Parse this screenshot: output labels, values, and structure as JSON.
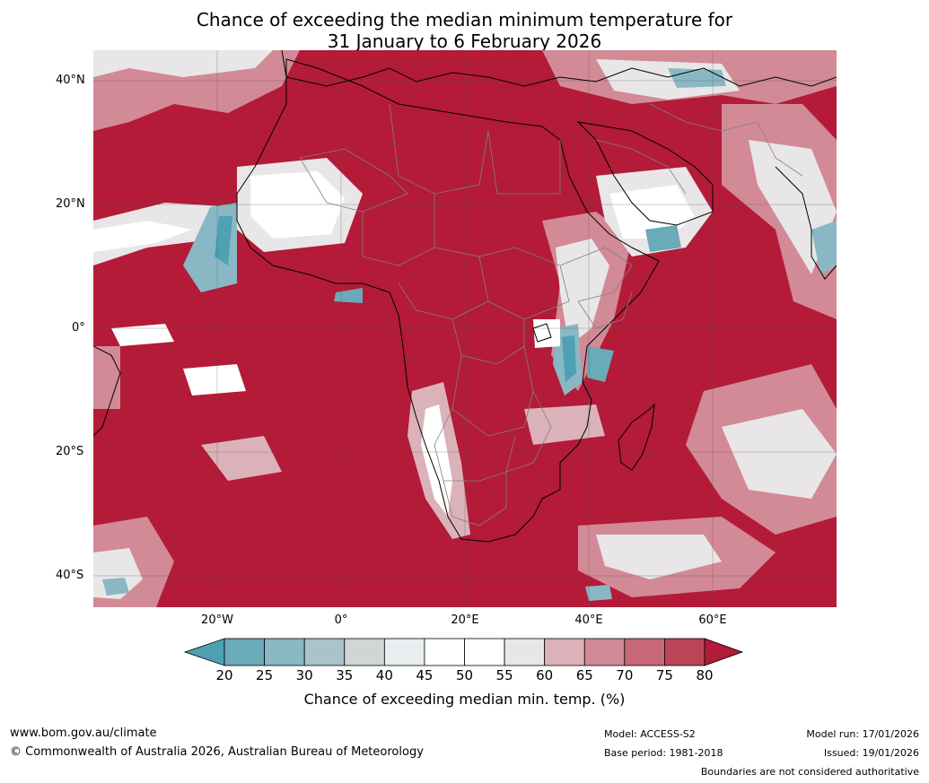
{
  "title": {
    "line1": "Chance of exceeding the median minimum temperature for",
    "line2": "31 January to 6 February 2026"
  },
  "map": {
    "lat_labels": [
      "40°N",
      "20°N",
      "0°",
      "20°S",
      "40°S"
    ],
    "lon_labels": [
      "20°W",
      "0°",
      "20°E",
      "40°E",
      "60°E"
    ],
    "colors": {
      "ocean_hot": "#b31b38",
      "land_hot": "#b31b38",
      "coast": "#000000",
      "borders": "#808080"
    }
  },
  "legend": {
    "ticks": [
      "20",
      "25",
      "30",
      "35",
      "40",
      "45",
      "50",
      "55",
      "60",
      "65",
      "70",
      "75",
      "80"
    ],
    "colors": [
      "#4da1b2",
      "#6aaab9",
      "#8ab7c4",
      "#a8c4c9",
      "#d0d6d6",
      "#e9eef0",
      "#ffffff",
      "#ffffff",
      "#e9e6e8",
      "#dcb2ba",
      "#d28a96",
      "#c66875",
      "#bb4557",
      "#b31b38"
    ],
    "title": "Chance of exceeding median min. temp. (%)"
  },
  "footer": {
    "website": "www.bom.gov.au/climate",
    "copyright": "© Commonwealth of Australia 2026, Australian Bureau of Meteorology",
    "model": "Model: ACCESS-S2",
    "base_period": "Base period: 1981-2018",
    "model_run": "Model run: 17/01/2026",
    "issued": "Issued: 19/01/2026",
    "disclaimer": "Boundaries are not considered authoritative"
  }
}
